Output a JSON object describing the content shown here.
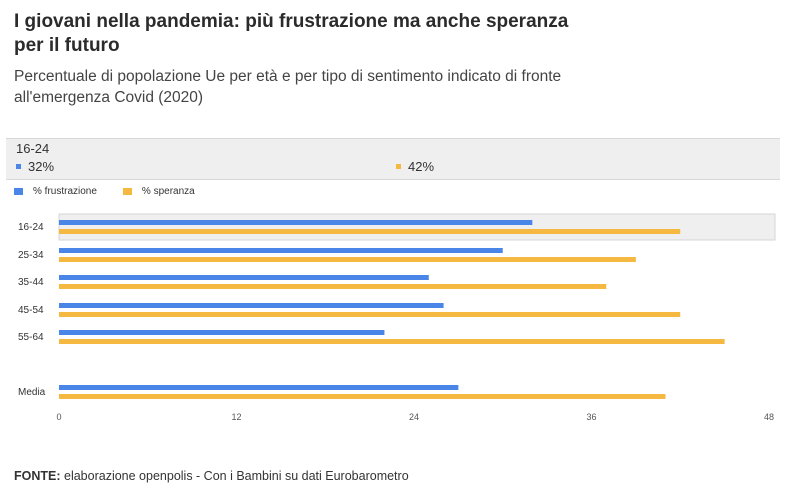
{
  "title": "I giovani nella pandemia: più frustrazione ma anche speranza per il futuro",
  "subtitle": "Percentuale di popolazione Ue per età e per tipo di sentimento indicato di fronte all'emergenza Covid (2020)",
  "tooltip": {
    "category": "16-24",
    "value1": "32%",
    "value2": "42%"
  },
  "source": {
    "label": "FONTE:",
    "text": " elaborazione openpolis - Con i Bambini su dati Eurobarometro"
  },
  "colors": {
    "frustrazione": "#4a86e8",
    "speranza": "#f5b942",
    "highlight": "#efefef"
  },
  "chart_data": {
    "type": "bar",
    "orientation": "horizontal",
    "categories": [
      "16-24",
      "25-34",
      "35-44",
      "45-54",
      "55-64",
      "Media"
    ],
    "series": [
      {
        "name": "% frustrazione",
        "values": [
          32,
          30,
          25,
          26,
          22,
          27
        ]
      },
      {
        "name": "% speranza",
        "values": [
          42,
          39,
          37,
          42,
          45,
          41
        ]
      }
    ],
    "xlim": [
      0,
      48
    ],
    "xticks": [
      0,
      12,
      24,
      36,
      48
    ],
    "legend": "top-left",
    "highlighted_category": "16-24",
    "grid": false
  }
}
